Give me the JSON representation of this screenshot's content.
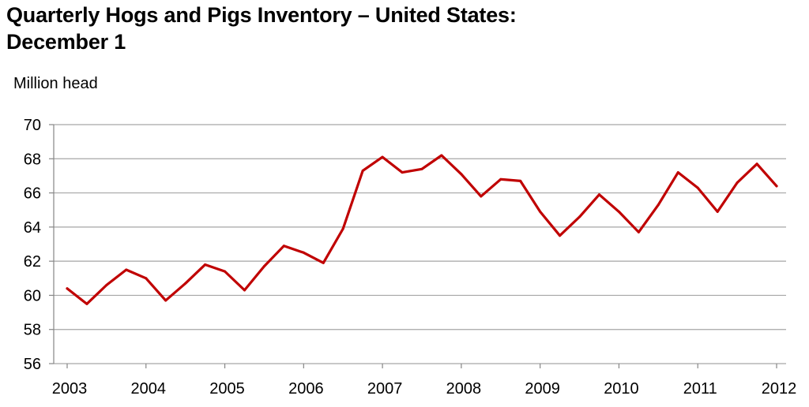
{
  "chart_data": {
    "type": "line",
    "title": "Quarterly Hogs and Pigs Inventory – United States:",
    "subtitle": "December 1",
    "ylabel": "Million head",
    "xlabel": "",
    "ylim": [
      56,
      70
    ],
    "yticks": [
      "56",
      "58",
      "60",
      "62",
      "64",
      "66",
      "68",
      "70"
    ],
    "xticks": [
      "2003",
      "2004",
      "2005",
      "2006",
      "2007",
      "2008",
      "2009",
      "2010",
      "2011",
      "2012"
    ],
    "grid": true,
    "legend": "none",
    "color": "#c00000",
    "series": [
      {
        "x": [
          2003.0,
          2003.25,
          2003.5,
          2003.75,
          2004.0,
          2004.25,
          2004.5,
          2004.75,
          2005.0,
          2005.25,
          2005.5,
          2005.75,
          2006.0,
          2006.25,
          2006.5,
          2006.75,
          2007.0,
          2007.25,
          2007.5,
          2007.75,
          2008.0,
          2008.25,
          2008.5,
          2008.75,
          2009.0,
          2009.25,
          2009.5,
          2009.75,
          2010.0,
          2010.25,
          2010.5,
          2010.75,
          2011.0,
          2011.25,
          2011.5,
          2011.75,
          2012.0
        ],
        "values": [
          60.4,
          59.5,
          60.6,
          61.5,
          61.0,
          59.7,
          60.7,
          61.8,
          61.4,
          60.3,
          61.7,
          62.9,
          62.5,
          61.9,
          63.9,
          67.3,
          68.1,
          67.2,
          67.4,
          68.2,
          67.1,
          65.8,
          66.8,
          66.7,
          64.9,
          63.5,
          64.6,
          65.9,
          64.9,
          63.7,
          65.3,
          67.2,
          66.3,
          64.9,
          66.6,
          67.7,
          66.4
        ]
      }
    ]
  }
}
